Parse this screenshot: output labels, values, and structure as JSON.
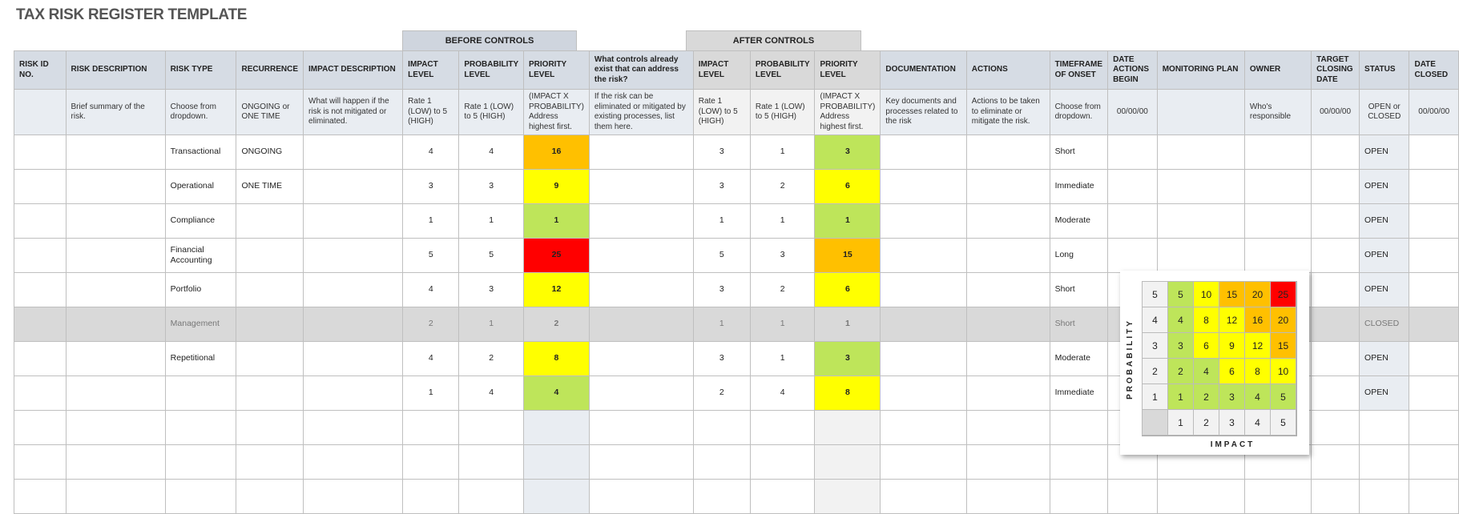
{
  "title": "TAX RISK REGISTER TEMPLATE",
  "bands": {
    "before": "BEFORE CONTROLS",
    "after": "AFTER CONTROLS"
  },
  "colors": {
    "green": "#BEE55A",
    "yellow": "#FFFF00",
    "orange": "#FFC000",
    "red": "#FF0000",
    "header_before": "#D6DCE4",
    "header_after": "#D9D9D9",
    "closed_row": "#D9D9D9"
  },
  "headers": [
    "RISK ID NO.",
    "RISK DESCRIPTION",
    "RISK TYPE",
    "RECURRENCE",
    "IMPACT DESCRIPTION",
    "IMPACT LEVEL",
    "PROBABILITY LEVEL",
    "PRIORITY LEVEL",
    "What controls already exist that can address the risk?",
    "IMPACT LEVEL",
    "PROBABILITY LEVEL",
    "PRIORITY LEVEL",
    "DOCUMENTATION",
    "ACTIONS",
    "TIMEFRAME OF ONSET",
    "DATE ACTIONS BEGIN",
    "MONITORING PLAN",
    "OWNER",
    "TARGET CLOSING DATE",
    "STATUS",
    "DATE CLOSED"
  ],
  "descriptions": [
    "",
    "Brief summary of the risk.",
    "Choose from dropdown.",
    "ONGOING or ONE TIME",
    "What will happen if the risk is not mitigated or eliminated.",
    "Rate 1 (LOW) to 5 (HIGH)",
    "Rate 1 (LOW) to 5 (HIGH)",
    "(IMPACT X PROBABILITY) Address highest first.",
    "If the risk can be eliminated or mitigated by existing processes, list them here.",
    "Rate 1 (LOW) to 5 (HIGH)",
    "Rate 1 (LOW) to 5 (HIGH)",
    "(IMPACT X PROBABILITY) Address highest first.",
    "Key documents and processes related to the risk",
    "Actions to be taken to eliminate or mitigate the risk.",
    "Choose from dropdown.",
    "00/00/00",
    "",
    "Who's responsible",
    "00/00/00",
    "OPEN or CLOSED",
    "00/00/00"
  ],
  "rows": [
    {
      "type": "Transactional",
      "recurrence": "ONGOING",
      "b_impact": "4",
      "b_prob": "4",
      "b_priority": "16",
      "b_color": "orange",
      "a_impact": "3",
      "a_prob": "1",
      "a_priority": "3",
      "a_color": "green",
      "timeframe": "Short",
      "status": "OPEN"
    },
    {
      "type": "Operational",
      "recurrence": "ONE TIME",
      "b_impact": "3",
      "b_prob": "3",
      "b_priority": "9",
      "b_color": "yellow",
      "a_impact": "3",
      "a_prob": "2",
      "a_priority": "6",
      "a_color": "yellow",
      "timeframe": "Immediate",
      "status": "OPEN"
    },
    {
      "type": "Compliance",
      "recurrence": "",
      "b_impact": "1",
      "b_prob": "1",
      "b_priority": "1",
      "b_color": "green",
      "a_impact": "1",
      "a_prob": "1",
      "a_priority": "1",
      "a_color": "green",
      "timeframe": "Moderate",
      "status": "OPEN"
    },
    {
      "type": "Financial Accounting",
      "recurrence": "",
      "b_impact": "5",
      "b_prob": "5",
      "b_priority": "25",
      "b_color": "red",
      "a_impact": "5",
      "a_prob": "3",
      "a_priority": "15",
      "a_color": "orange",
      "timeframe": "Long",
      "status": "OPEN"
    },
    {
      "type": "Portfolio",
      "recurrence": "",
      "b_impact": "4",
      "b_prob": "3",
      "b_priority": "12",
      "b_color": "yellow",
      "a_impact": "3",
      "a_prob": "2",
      "a_priority": "6",
      "a_color": "yellow",
      "timeframe": "Short",
      "status": "OPEN"
    },
    {
      "type": "Management",
      "recurrence": "",
      "b_impact": "2",
      "b_prob": "1",
      "b_priority": "2",
      "b_color": "",
      "a_impact": "1",
      "a_prob": "1",
      "a_priority": "1",
      "a_color": "",
      "timeframe": "Short",
      "status": "CLOSED",
      "closed": true
    },
    {
      "type": "Repetitional",
      "recurrence": "",
      "b_impact": "4",
      "b_prob": "2",
      "b_priority": "8",
      "b_color": "yellow",
      "a_impact": "3",
      "a_prob": "1",
      "a_priority": "3",
      "a_color": "green",
      "timeframe": "Moderate",
      "status": "OPEN"
    },
    {
      "type": "",
      "recurrence": "",
      "b_impact": "1",
      "b_prob": "4",
      "b_priority": "4",
      "b_color": "green",
      "a_impact": "2",
      "a_prob": "4",
      "a_priority": "8",
      "a_color": "yellow",
      "timeframe": "Immediate",
      "status": "OPEN"
    },
    {
      "empty": true
    },
    {
      "empty": true
    },
    {
      "empty": true
    }
  ],
  "matrix": {
    "y_label": "PROBABILITY",
    "x_label": "IMPACT",
    "x_ticks": [
      "1",
      "2",
      "3",
      "4",
      "5"
    ],
    "y_ticks": [
      "5",
      "4",
      "3",
      "2",
      "1"
    ],
    "cells": [
      [
        [
          "5",
          "green"
        ],
        [
          "10",
          "yellow"
        ],
        [
          "15",
          "orange"
        ],
        [
          "20",
          "orange"
        ],
        [
          "25",
          "red"
        ]
      ],
      [
        [
          "4",
          "green"
        ],
        [
          "8",
          "yellow"
        ],
        [
          "12",
          "yellow"
        ],
        [
          "16",
          "orange"
        ],
        [
          "20",
          "orange"
        ]
      ],
      [
        [
          "3",
          "green"
        ],
        [
          "6",
          "yellow"
        ],
        [
          "9",
          "yellow"
        ],
        [
          "12",
          "yellow"
        ],
        [
          "15",
          "orange"
        ]
      ],
      [
        [
          "2",
          "green"
        ],
        [
          "4",
          "green"
        ],
        [
          "6",
          "yellow"
        ],
        [
          "8",
          "yellow"
        ],
        [
          "10",
          "yellow"
        ]
      ],
      [
        [
          "1",
          "green"
        ],
        [
          "2",
          "green"
        ],
        [
          "3",
          "green"
        ],
        [
          "4",
          "green"
        ],
        [
          "5",
          "green"
        ]
      ]
    ]
  }
}
